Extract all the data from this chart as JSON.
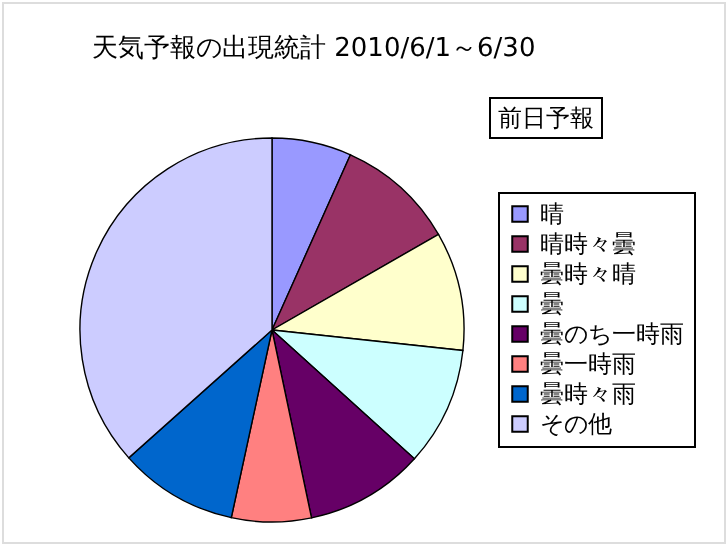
{
  "chart_data": {
    "type": "pie",
    "title": "天気予報の出現統計 2010/6/1～6/30",
    "categories": [
      "晴",
      "晴時々曇",
      "曇時々晴",
      "曇",
      "曇のち一時雨",
      "曇一時雨",
      "曇時々雨",
      "その他"
    ],
    "values": [
      6.7,
      10,
      10,
      10,
      10,
      6.7,
      10,
      36.6
    ],
    "colors": [
      "#9999ff",
      "#993366",
      "#ffffcc",
      "#ccffff",
      "#660066",
      "#ff8080",
      "#0066cc",
      "#ccccff"
    ],
    "annotations": [
      "前日予報"
    ],
    "legend": "right"
  }
}
